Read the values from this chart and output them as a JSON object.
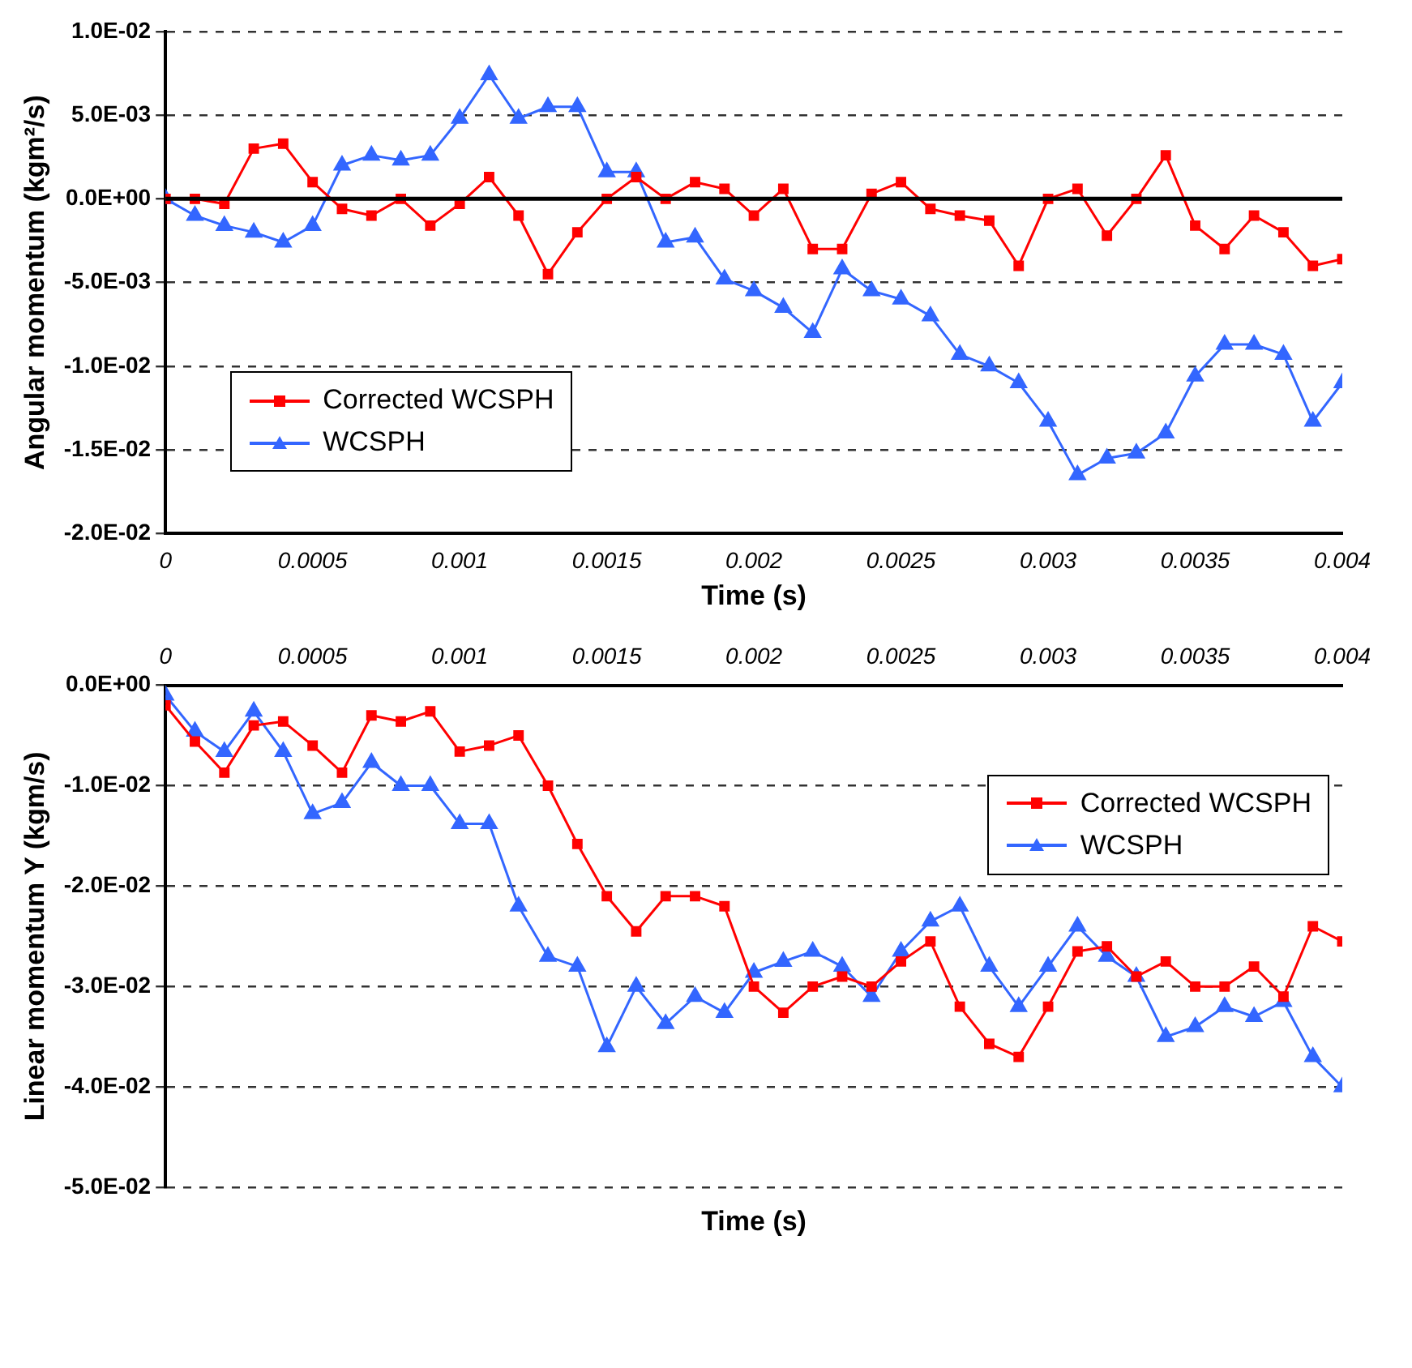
{
  "chart_data": [
    {
      "type": "line",
      "xlabel": "Time (s)",
      "ylabel": "Angular momentum (kgm²/s)",
      "x": [
        0,
        0.0001,
        0.0002,
        0.0003,
        0.0004,
        0.0005,
        0.0006,
        0.0007,
        0.0008,
        0.0009,
        0.001,
        0.0011,
        0.0012,
        0.0013,
        0.0014,
        0.0015,
        0.0016,
        0.0017,
        0.0018,
        0.0019,
        0.002,
        0.0021,
        0.0022,
        0.0023,
        0.0024,
        0.0025,
        0.0026,
        0.0027,
        0.0028,
        0.0029,
        0.003,
        0.0031,
        0.0032,
        0.0033,
        0.0034,
        0.0035,
        0.0036,
        0.0037,
        0.0038,
        0.0039,
        0.004
      ],
      "series": [
        {
          "name": "Corrected WCSPH",
          "color": "#ff0000",
          "marker": "square",
          "values": [
            0,
            0,
            -0.0003,
            0.003,
            0.0033,
            0.001,
            -0.0006,
            -0.001,
            0,
            -0.0016,
            -0.0003,
            0.0013,
            -0.001,
            -0.0045,
            -0.002,
            0,
            0.0013,
            0,
            0.001,
            0.0006,
            -0.001,
            0.0006,
            -0.003,
            -0.003,
            0.0003,
            0.001,
            -0.0006,
            -0.001,
            -0.0013,
            -0.004,
            0,
            0.0006,
            -0.0022,
            0,
            0.0026,
            -0.0016,
            -0.003,
            -0.001,
            -0.002,
            -0.004,
            -0.0036
          ]
        },
        {
          "name": "WCSPH",
          "color": "#3366ff",
          "marker": "triangle",
          "values": [
            0,
            -0.001,
            -0.0016,
            -0.002,
            -0.0026,
            -0.0016,
            0.002,
            0.0026,
            0.0023,
            0.0026,
            0.0048,
            0.0074,
            0.0048,
            0.0055,
            0.0055,
            0.0016,
            0.0016,
            -0.0026,
            -0.0023,
            -0.0048,
            -0.0055,
            -0.0065,
            -0.008,
            -0.0042,
            -0.0055,
            -0.006,
            -0.007,
            -0.0093,
            -0.01,
            -0.011,
            -0.0133,
            -0.0165,
            -0.0155,
            -0.0152,
            -0.014,
            -0.0106,
            -0.0087,
            -0.0087,
            -0.0093,
            -0.0133,
            -0.011
          ]
        }
      ],
      "xlim": [
        0,
        0.004
      ],
      "xticks": [
        0,
        0.0005,
        0.001,
        0.0015,
        0.002,
        0.0025,
        0.003,
        0.0035,
        0.004
      ],
      "ylim": [
        -0.02,
        0.01
      ],
      "yticks": [
        {
          "value": -0.02,
          "label": "-2.0E-02"
        },
        {
          "value": -0.015,
          "label": "-1.5E-02"
        },
        {
          "value": -0.01,
          "label": "-1.0E-02"
        },
        {
          "value": -0.005,
          "label": "-5.0E-03"
        },
        {
          "value": 0,
          "label": "0.0E+00"
        },
        {
          "value": 0.005,
          "label": "5.0E-03"
        },
        {
          "value": 0.01,
          "label": "1.0E-02"
        }
      ],
      "ref_lines": [
        {
          "axis": "y",
          "value": 0,
          "color": "#000000"
        }
      ],
      "grid": "y",
      "legend": "bottom left"
    },
    {
      "type": "line",
      "xlabel": "Time (s)",
      "ylabel": "Linear momentum Y (kgm/s)",
      "x": [
        0,
        0.0001,
        0.0002,
        0.0003,
        0.0004,
        0.0005,
        0.0006,
        0.0007,
        0.0008,
        0.0009,
        0.001,
        0.0011,
        0.0012,
        0.0013,
        0.0014,
        0.0015,
        0.0016,
        0.0017,
        0.0018,
        0.0019,
        0.002,
        0.0021,
        0.0022,
        0.0023,
        0.0024,
        0.0025,
        0.0026,
        0.0027,
        0.0028,
        0.0029,
        0.003,
        0.0031,
        0.0032,
        0.0033,
        0.0034,
        0.0035,
        0.0036,
        0.0037,
        0.0038,
        0.0039,
        0.004
      ],
      "series": [
        {
          "name": "Corrected WCSPH",
          "color": "#ff0000",
          "marker": "square",
          "values": [
            -0.002,
            -0.0056,
            -0.0087,
            -0.004,
            -0.0036,
            -0.006,
            -0.0087,
            -0.003,
            -0.0036,
            -0.0026,
            -0.0066,
            -0.006,
            -0.005,
            -0.01,
            -0.0158,
            -0.021,
            -0.0245,
            -0.021,
            -0.021,
            -0.022,
            -0.03,
            -0.0326,
            -0.03,
            -0.029,
            -0.03,
            -0.0275,
            -0.0255,
            -0.032,
            -0.0357,
            -0.037,
            -0.032,
            -0.0265,
            -0.026,
            -0.029,
            -0.0275,
            -0.03,
            -0.03,
            -0.028,
            -0.031,
            -0.024,
            -0.0255
          ]
        },
        {
          "name": "WCSPH",
          "color": "#3366ff",
          "marker": "triangle",
          "values": [
            -0.001,
            -0.0046,
            -0.0066,
            -0.0026,
            -0.0066,
            -0.0128,
            -0.0117,
            -0.0077,
            -0.01,
            -0.01,
            -0.0138,
            -0.0138,
            -0.022,
            -0.027,
            -0.028,
            -0.036,
            -0.03,
            -0.0337,
            -0.031,
            -0.0326,
            -0.0286,
            -0.0275,
            -0.0265,
            -0.028,
            -0.031,
            -0.0265,
            -0.0235,
            -0.022,
            -0.028,
            -0.032,
            -0.028,
            -0.024,
            -0.027,
            -0.029,
            -0.035,
            -0.034,
            -0.032,
            -0.033,
            -0.0315,
            -0.037,
            -0.04
          ]
        }
      ],
      "xlim": [
        0,
        0.004
      ],
      "xticks": [
        0,
        0.0005,
        0.001,
        0.0015,
        0.002,
        0.0025,
        0.003,
        0.0035,
        0.004
      ],
      "ylim": [
        -0.05,
        0
      ],
      "yticks": [
        {
          "value": -0.05,
          "label": "-5.0E-02"
        },
        {
          "value": -0.04,
          "label": "-4.0E-02"
        },
        {
          "value": -0.03,
          "label": "-3.0E-02"
        },
        {
          "value": -0.02,
          "label": "-2.0E-02"
        },
        {
          "value": -0.01,
          "label": "-1.0E-02"
        },
        {
          "value": 0,
          "label": "0.0E+00"
        }
      ],
      "grid": "y",
      "legend": "top right"
    }
  ]
}
